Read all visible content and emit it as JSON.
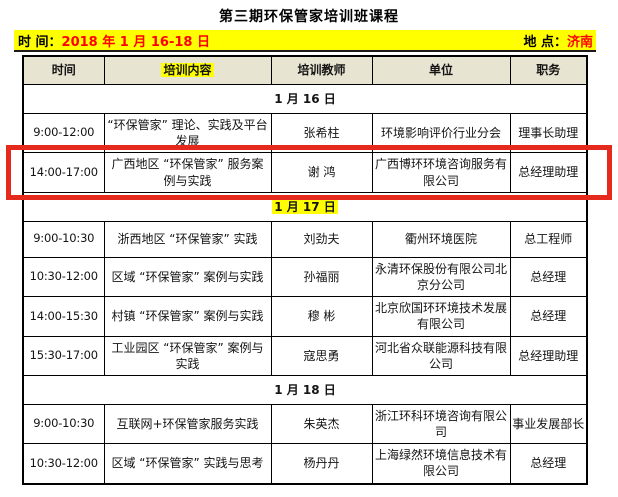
{
  "page": {
    "title": "第三期环保管家培训班课程",
    "info_bar": {
      "time_label": "时 间：",
      "time_value": "2018 年 1 月 16-18 日",
      "location_label": "地 点：",
      "location_value": "济南"
    }
  },
  "colors": {
    "highlight_yellow": "#ffff00",
    "header_background_tan": "#e8e4d2",
    "info_value_red": "#ff0000",
    "annotation_box_red": "#e6291d",
    "table_border_black": "#000000"
  },
  "table": {
    "columns": [
      "时间",
      "培训内容",
      "培训教师",
      "单位",
      "职务"
    ],
    "highlighted_column": "培训内容",
    "sections": [
      {
        "date": "1 月 16 日",
        "date_highlighted": false,
        "rows": [
          {
            "time": "9:00-12:00",
            "content": "“环保管家” 理论、实践及平台发展",
            "teacher": "张希柱",
            "organization": "环境影响评价行业分会",
            "position": "理事长助理",
            "annotated": false
          },
          {
            "time": "14:00-17:00",
            "content": "广西地区 “环保管家” 服务案例与实践",
            "teacher": "谢 鸿",
            "organization": "广西博环环境咨询服务有限公司",
            "position": "总经理助理",
            "annotated": true
          }
        ]
      },
      {
        "date": "1 月 17 日",
        "date_highlighted": true,
        "rows": [
          {
            "time": "9:00-10:30",
            "content": "浙西地区 “环保管家” 实践",
            "teacher": "刘劲夫",
            "organization": "衢州环境医院",
            "position": "总工程师",
            "annotated": false
          },
          {
            "time": "10:30-12:00",
            "content": "区域 “环保管家” 案例与实践",
            "teacher": "孙福丽",
            "organization": "永清环保股份有限公司北京分公司",
            "position": "总经理",
            "annotated": false
          },
          {
            "time": "14:00-15:30",
            "content": "村镇 “环保管家” 案例与实践",
            "teacher": "穆 彬",
            "organization": "北京欣国环环境技术发展有限公司",
            "position": "总经理",
            "annotated": false
          },
          {
            "time": "15:30-17:00",
            "content": "工业园区 “环保管家” 案例与实践",
            "teacher": "寇思勇",
            "organization": "河北省众联能源科技有限公司",
            "position": "总经理助理",
            "annotated": false
          }
        ]
      },
      {
        "date": "1 月 18 日",
        "date_highlighted": false,
        "rows": [
          {
            "time": "9:00-10:30",
            "content": "互联网+环保管家服务实践",
            "teacher": "朱英杰",
            "organization": "浙江环科环境咨询有限公司",
            "position": "事业发展部长",
            "annotated": false
          },
          {
            "time": "10:30-12:00",
            "content": "区域 “环保管家” 实践与思考",
            "teacher": "杨丹丹",
            "organization": "上海绿然环境信息技术有限公司",
            "position": "总经理",
            "annotated": false
          }
        ]
      }
    ],
    "annotation": {
      "type": "red-outline-box",
      "target_row_time": "14:00-17:00"
    }
  }
}
